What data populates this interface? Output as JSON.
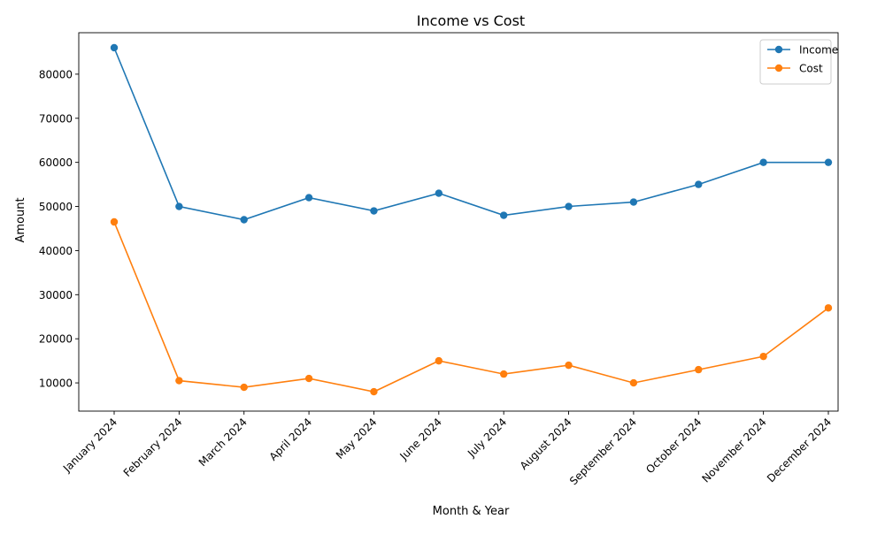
{
  "chart_data": {
    "type": "line",
    "title": "Income vs Cost",
    "xlabel": "Month & Year",
    "ylabel": "Amount",
    "categories": [
      "January 2024",
      "February 2024",
      "March 2024",
      "April 2024",
      "May 2024",
      "June 2024",
      "July 2024",
      "August 2024",
      "September 2024",
      "October 2024",
      "November 2024",
      "December 2024"
    ],
    "series": [
      {
        "name": "Income",
        "color": "#1f77b4",
        "marker": "circle",
        "values": [
          86000,
          50000,
          47000,
          52000,
          49000,
          53000,
          48000,
          50000,
          51000,
          55000,
          60000,
          60000
        ]
      },
      {
        "name": "Cost",
        "color": "#ff7f0e",
        "marker": "circle",
        "values": [
          46500,
          10500,
          9000,
          11000,
          8000,
          15000,
          12000,
          14000,
          10000,
          13000,
          16000,
          27000
        ]
      }
    ],
    "ylim": [
      3600,
      89400
    ],
    "yticks": [
      10000,
      20000,
      30000,
      40000,
      50000,
      60000,
      70000,
      80000
    ],
    "x_tick_rotation": 45,
    "grid": false,
    "legend_position": "top-right"
  }
}
